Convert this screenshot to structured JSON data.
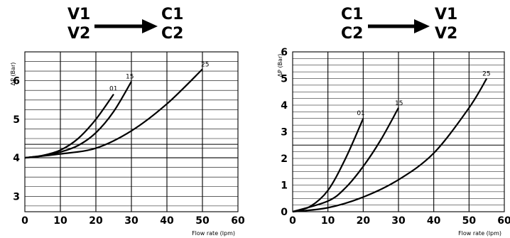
{
  "charts": [
    {
      "flow": {
        "from": [
          "V1",
          "V2"
        ],
        "to": [
          "C1",
          "C2"
        ]
      },
      "chart_data": {
        "type": "line",
        "title": "",
        "xlabel": "Flow rate (lpm)",
        "ylabel": "ΔP (Bar)",
        "xlim": [
          0,
          60
        ],
        "ylim": [
          2.6,
          6.75
        ],
        "xticks": [
          0,
          10,
          20,
          30,
          40,
          50,
          60
        ],
        "yticks": [
          3,
          4,
          5,
          6
        ],
        "major_hlines": [
          4,
          4.35
        ],
        "grid": true,
        "series": [
          {
            "name": "01",
            "x": [
              0,
              5,
              10,
              15,
              20,
              25
            ],
            "y": [
              4.0,
              4.06,
              4.2,
              4.5,
              5.0,
              5.65
            ]
          },
          {
            "name": "15",
            "x": [
              0,
              5,
              10,
              15,
              20,
              25,
              30
            ],
            "y": [
              4.0,
              4.05,
              4.15,
              4.32,
              4.65,
              5.2,
              5.98
            ]
          },
          {
            "name": "25",
            "x": [
              0,
              10,
              20,
              30,
              40,
              50
            ],
            "y": [
              4.0,
              4.1,
              4.25,
              4.7,
              5.4,
              6.3
            ]
          }
        ]
      }
    },
    {
      "flow": {
        "from": [
          "C1",
          "C2"
        ],
        "to": [
          "V1",
          "V2"
        ]
      },
      "chart_data": {
        "type": "line",
        "title": "",
        "xlabel": "Flow rate (lpm)",
        "ylabel": "ΔP (Bar)",
        "xlim": [
          0,
          60
        ],
        "ylim": [
          0,
          6
        ],
        "xticks": [
          0,
          10,
          20,
          30,
          40,
          50,
          60
        ],
        "yticks": [
          0,
          1,
          2,
          3,
          4,
          5,
          6
        ],
        "major_hlines": [
          2.5
        ],
        "grid": true,
        "series": [
          {
            "name": "01",
            "x": [
              0,
              5,
              10,
              15,
              20
            ],
            "y": [
              0,
              0.2,
              0.8,
              2.0,
              3.5
            ]
          },
          {
            "name": "15",
            "x": [
              0,
              10,
              15,
              20,
              25,
              30
            ],
            "y": [
              0,
              0.4,
              0.9,
              1.7,
              2.7,
              3.9
            ]
          },
          {
            "name": "25",
            "x": [
              0,
              10,
              20,
              30,
              40,
              50,
              55
            ],
            "y": [
              0,
              0.15,
              0.55,
              1.2,
              2.2,
              3.9,
              5.0
            ]
          }
        ]
      }
    }
  ]
}
